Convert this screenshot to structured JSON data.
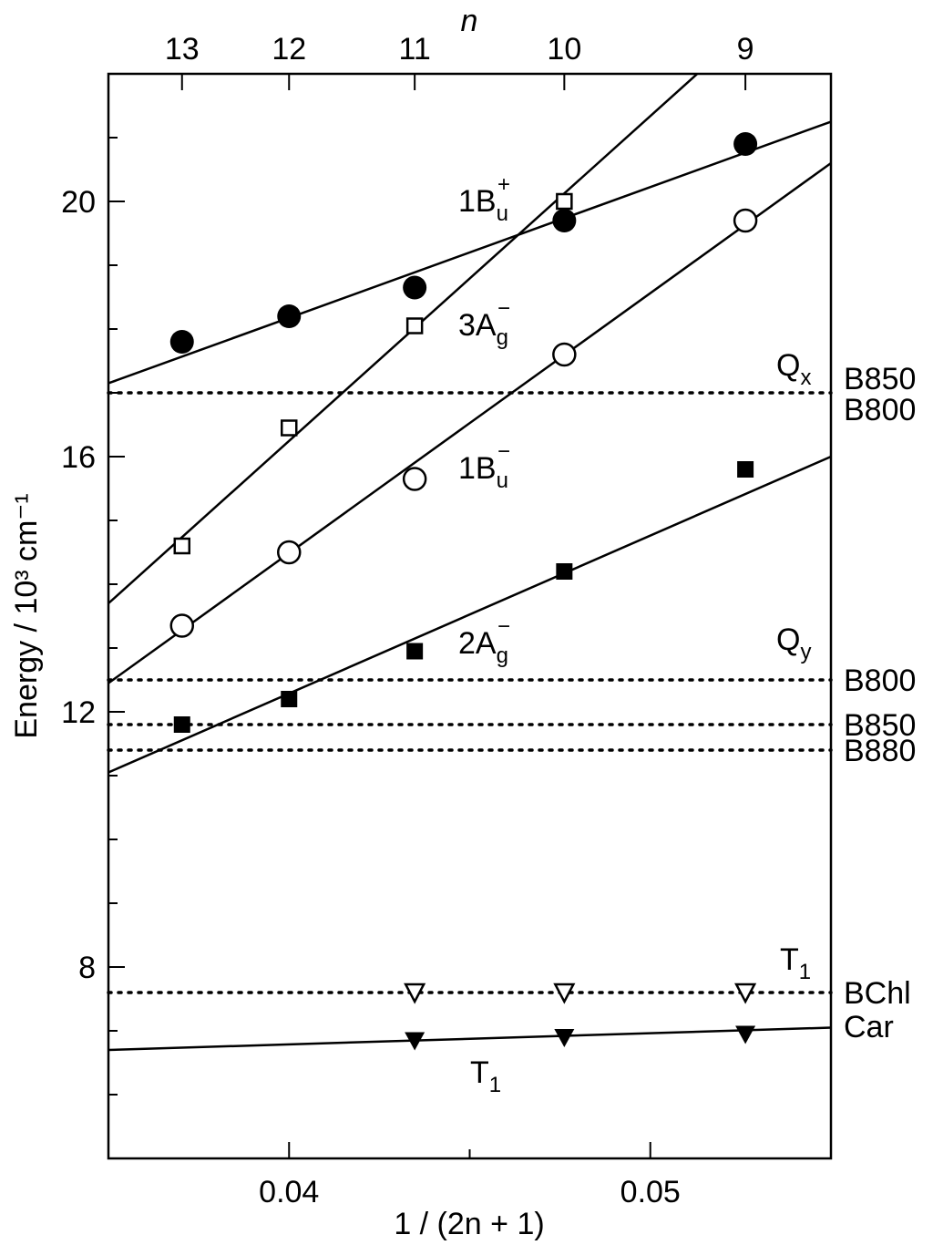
{
  "chart_data": {
    "type": "scatter",
    "xlabel": "1 / (2n + 1)",
    "ylabel": "Energy / 10³ cm⁻¹",
    "top_axis_label": "n",
    "xlim": [
      0.035,
      0.055
    ],
    "ylim": [
      5.0,
      22.0
    ],
    "x_ticks": [
      0.04,
      0.05
    ],
    "x_tick_labels": [
      "0.04",
      "0.05"
    ],
    "y_ticks": [
      8,
      12,
      16,
      20
    ],
    "y_tick_labels": [
      "8",
      "12",
      "16",
      "20"
    ],
    "top_ticks": [
      {
        "n": "13",
        "x": 0.037037
      },
      {
        "n": "12",
        "x": 0.04
      },
      {
        "n": "11",
        "x": 0.043478
      },
      {
        "n": "10",
        "x": 0.047619
      },
      {
        "n": "9",
        "x": 0.052632
      }
    ],
    "grid": false,
    "legend": "none",
    "series": [
      {
        "label_base": "1B",
        "label_sub": "u",
        "label_sup": "+",
        "marker": "filled-circle",
        "points": [
          [
            0.037037,
            17.8
          ],
          [
            0.04,
            18.2
          ],
          [
            0.043478,
            18.65
          ],
          [
            0.047619,
            19.7
          ],
          [
            0.052632,
            20.9
          ]
        ],
        "fit": [
          [
            0.035,
            17.15
          ],
          [
            0.055,
            21.25
          ]
        ]
      },
      {
        "label_base": "3A",
        "label_sub": "g",
        "label_sup": "−",
        "marker": "open-square",
        "points": [
          [
            0.037037,
            14.6
          ],
          [
            0.04,
            16.45
          ],
          [
            0.043478,
            18.05
          ],
          [
            0.047619,
            20.0
          ]
        ],
        "fit": [
          [
            0.035,
            13.7
          ],
          [
            0.0513,
            22.0
          ]
        ]
      },
      {
        "label_base": "1B",
        "label_sub": "u",
        "label_sup": "−",
        "marker": "open-circle",
        "points": [
          [
            0.037037,
            13.35
          ],
          [
            0.04,
            14.5
          ],
          [
            0.043478,
            15.65
          ],
          [
            0.047619,
            17.6
          ],
          [
            0.052632,
            19.7
          ]
        ],
        "fit": [
          [
            0.035,
            12.45
          ],
          [
            0.055,
            20.6
          ]
        ]
      },
      {
        "label_base": "2A",
        "label_sub": "g",
        "label_sup": "−",
        "marker": "filled-square",
        "points": [
          [
            0.037037,
            11.8
          ],
          [
            0.04,
            12.2
          ],
          [
            0.043478,
            12.95
          ],
          [
            0.047619,
            14.2
          ],
          [
            0.052632,
            15.8
          ]
        ],
        "fit": [
          [
            0.035,
            11.05
          ],
          [
            0.055,
            16.0
          ]
        ]
      },
      {
        "label_base": "T",
        "label_sub": "1",
        "label_sup": "",
        "marker": "filled-triangle-down",
        "points": [
          [
            0.043478,
            6.85
          ],
          [
            0.047619,
            6.9
          ],
          [
            0.052632,
            6.95
          ]
        ],
        "fit": [
          [
            0.035,
            6.7
          ],
          [
            0.055,
            7.05
          ]
        ]
      },
      {
        "label_base": "",
        "label_sub": "",
        "label_sup": "",
        "marker": "open-triangle-down",
        "points": [
          [
            0.043478,
            7.6
          ],
          [
            0.047619,
            7.6
          ],
          [
            0.052632,
            7.6
          ]
        ],
        "fit": []
      }
    ],
    "reference_lines": [
      {
        "y": 17.0,
        "labels": [
          "B850",
          "B800"
        ],
        "style": "dotted"
      },
      {
        "y": 12.5,
        "labels": [
          "B800"
        ],
        "style": "dotted"
      },
      {
        "y": 11.8,
        "labels": [
          "B850"
        ],
        "style": "dotted"
      },
      {
        "y": 11.4,
        "labels": [
          "B880"
        ],
        "style": "dotted"
      },
      {
        "y": 7.6,
        "labels": [
          "BChl"
        ],
        "style": "dotted"
      }
    ],
    "annotations": [
      {
        "base": "Q",
        "sub": "x",
        "y": 17.45
      },
      {
        "base": "Q",
        "sub": "y",
        "y": 13.0
      },
      {
        "base": "T",
        "sub": "1",
        "y": 8.05
      },
      {
        "base": "Car",
        "sub": "",
        "y": 6.9
      }
    ]
  }
}
